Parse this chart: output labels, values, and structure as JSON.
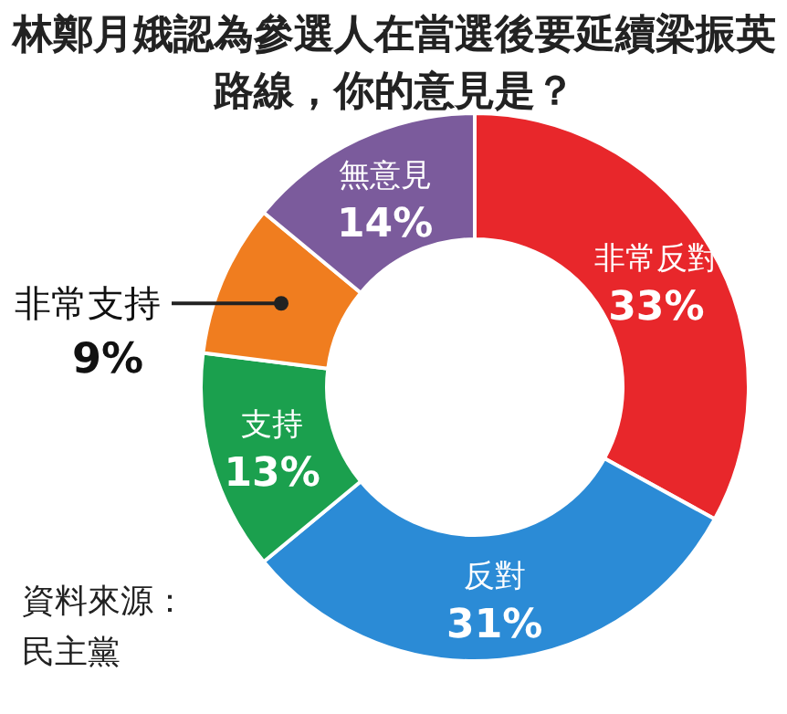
{
  "chart_data": {
    "type": "donut",
    "title": "林鄭月娥認為參選人在當選後要延續梁振英路線，你的意見是？",
    "categories": [
      "非常反對",
      "反對",
      "支持",
      "非常支持",
      "無意見"
    ],
    "values": [
      33,
      31,
      13,
      9,
      14
    ],
    "colors": [
      "#e8272b",
      "#2b8bd6",
      "#1ba04e",
      "#f07d1f",
      "#7b5b9c"
    ],
    "value_labels": [
      "33%",
      "31%",
      "13%",
      "9%",
      "14%"
    ],
    "annotations": [
      "資料來源：民主黨"
    ]
  }
}
